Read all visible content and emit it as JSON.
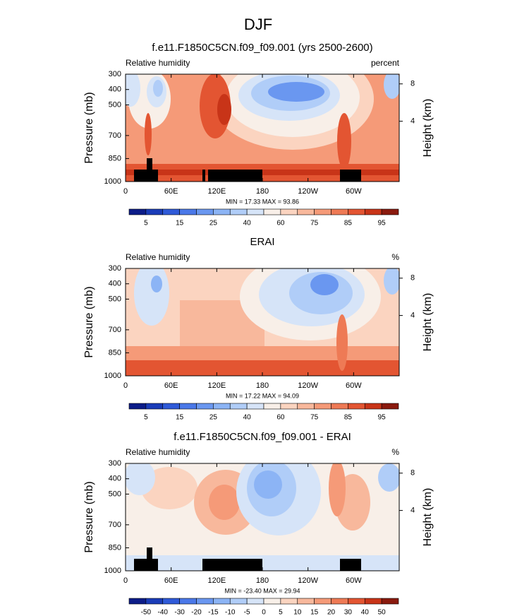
{
  "title": "DJF",
  "chart_data": [
    {
      "type": "contour",
      "title": "f.e11.F1850C5CN.f09_f09.001 (yrs 2500-2600)",
      "left_label": "Relative humidity",
      "right_label": "percent",
      "ylabel": "Pressure (mb)",
      "y2label": "Height (km)",
      "stats": "MIN = 17.33  MAX = 93.86",
      "xlim": [
        0,
        360
      ],
      "xticks": [
        0,
        {
          "value": 60,
          "label": "60E"
        },
        {
          "value": 120,
          "label": "120E"
        },
        180,
        {
          "value": 240,
          "label": "120W"
        },
        {
          "value": 300,
          "label": "60W"
        }
      ],
      "ylim": [
        1000,
        300
      ],
      "yticks": [
        300,
        400,
        500,
        700,
        850,
        1000
      ],
      "y2ticks": [
        4,
        8
      ],
      "colorbar": {
        "levels": [
          5,
          10,
          15,
          20,
          25,
          30,
          40,
          50,
          60,
          70,
          75,
          80,
          85,
          90,
          95
        ],
        "ticks": [
          5,
          15,
          25,
          40,
          60,
          75,
          85,
          95
        ],
        "colors": [
          "#0c1c88",
          "#1a3cb8",
          "#2f5ad8",
          "#4a78e8",
          "#6a97f0",
          "#8cb4f5",
          "#b0cdf8",
          "#d6e4f8",
          "#f8efe8",
          "#fbd4c0",
          "#f8b89c",
          "#f59a78",
          "#ee7a55",
          "#e35532",
          "#c83418",
          "#8a1a0e"
        ]
      }
    },
    {
      "type": "contour",
      "title": "ERAI",
      "left_label": "Relative humidity",
      "right_label": "%",
      "ylabel": "Pressure (mb)",
      "y2label": "Height (km)",
      "stats": "MIN = 17.22  MAX = 94.09",
      "xlim": [
        0,
        360
      ],
      "xticks": [
        0,
        {
          "value": 60,
          "label": "60E"
        },
        {
          "value": 120,
          "label": "120E"
        },
        180,
        {
          "value": 240,
          "label": "120W"
        },
        {
          "value": 300,
          "label": "60W"
        }
      ],
      "ylim": [
        1000,
        300
      ],
      "yticks": [
        300,
        400,
        500,
        700,
        850,
        1000
      ],
      "y2ticks": [
        4,
        8
      ],
      "colorbar": {
        "levels": [
          5,
          10,
          15,
          20,
          25,
          30,
          40,
          50,
          60,
          70,
          75,
          80,
          85,
          90,
          95
        ],
        "ticks": [
          5,
          15,
          25,
          40,
          60,
          75,
          85,
          95
        ],
        "colors": [
          "#0c1c88",
          "#1a3cb8",
          "#2f5ad8",
          "#4a78e8",
          "#6a97f0",
          "#8cb4f5",
          "#b0cdf8",
          "#d6e4f8",
          "#f8efe8",
          "#fbd4c0",
          "#f8b89c",
          "#f59a78",
          "#ee7a55",
          "#e35532",
          "#c83418",
          "#8a1a0e"
        ]
      }
    },
    {
      "type": "contour",
      "title": "f.e11.F1850C5CN.f09_f09.001 - ERAI",
      "left_label": "Relative humidity",
      "right_label": "%",
      "ylabel": "Pressure (mb)",
      "y2label": "Height (km)",
      "stats": "MIN = -23.40  MAX = 29.94",
      "xlim": [
        0,
        360
      ],
      "xticks": [
        0,
        {
          "value": 60,
          "label": "60E"
        },
        {
          "value": 120,
          "label": "120E"
        },
        180,
        {
          "value": 240,
          "label": "120W"
        },
        {
          "value": 300,
          "label": "60W"
        }
      ],
      "ylim": [
        1000,
        300
      ],
      "yticks": [
        300,
        400,
        500,
        700,
        850,
        1000
      ],
      "y2ticks": [
        4,
        8
      ],
      "colorbar": {
        "levels": [
          -50,
          -40,
          -30,
          -20,
          -15,
          -10,
          -5,
          0,
          5,
          10,
          15,
          20,
          30,
          40,
          50
        ],
        "ticks": [
          -50,
          -40,
          -30,
          -20,
          -15,
          -10,
          -5,
          0,
          5,
          10,
          15,
          20,
          30,
          40,
          50
        ],
        "colors": [
          "#0c1c88",
          "#1a3cb8",
          "#2f5ad8",
          "#4a78e8",
          "#6a97f0",
          "#8cb4f5",
          "#b0cdf8",
          "#d6e4f8",
          "#f8efe8",
          "#fbd4c0",
          "#f8b89c",
          "#f59a78",
          "#ee7a55",
          "#e35532",
          "#c83418",
          "#8a1a0e"
        ]
      }
    }
  ]
}
